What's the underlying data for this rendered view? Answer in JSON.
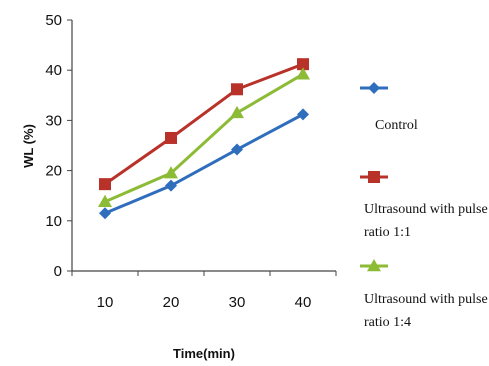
{
  "chart_data": {
    "type": "line",
    "title": "",
    "xlabel": "Time(min)",
    "ylabel": "WL (%)",
    "x": [
      10,
      20,
      30,
      40
    ],
    "ylim": [
      0,
      50
    ],
    "yticks": [
      0,
      10,
      20,
      30,
      40,
      50
    ],
    "grid": false,
    "legend_position": "right",
    "series": [
      {
        "name": "Control",
        "marker": "diamond",
        "color": "#2f6ebd",
        "values": [
          11.5,
          17,
          24.2,
          31.2
        ]
      },
      {
        "name": "Ultrasound with pulse ratio 1:1",
        "marker": "square",
        "color": "#b8322a",
        "values": [
          17.3,
          26.5,
          36.2,
          41.2
        ]
      },
      {
        "name": "Ultrasound with pulse ratio 1:4",
        "marker": "triangle",
        "color": "#8cbb35",
        "values": [
          13.8,
          19.5,
          31.5,
          39.2
        ]
      }
    ],
    "legend_lines": [
      [
        "Control"
      ],
      [
        "Ultrasound with pulse",
        "ratio 1:1"
      ],
      [
        "Ultrasound with pulse",
        "ratio 1:4"
      ]
    ]
  }
}
